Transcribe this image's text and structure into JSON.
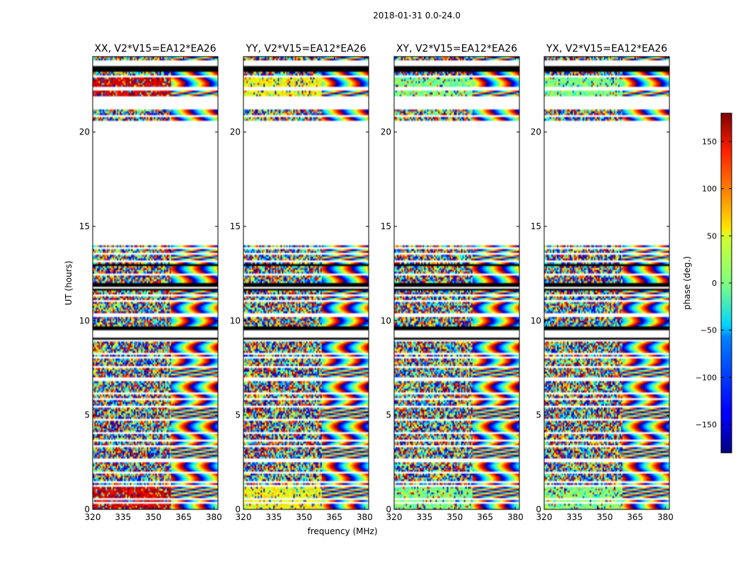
{
  "figure": {
    "suptitle": "2018-01-31 0.0-24.0",
    "xlabel": "frequency (MHz)",
    "ylabel": "UT (hours)",
    "colorbar_label": "phase (deg.)"
  },
  "chart_data": {
    "type": "heatmap",
    "panels": [
      {
        "title": "XX, V2*V15=EA12*EA26",
        "polarization": "XX"
      },
      {
        "title": "YY, V2*V15=EA12*EA26",
        "polarization": "YY"
      },
      {
        "title": "XY, V2*V15=EA12*EA26",
        "polarization": "XY"
      },
      {
        "title": "YX, V2*V15=EA12*EA26",
        "polarization": "YX"
      }
    ],
    "x": {
      "label": "frequency (MHz)",
      "range": [
        320,
        382
      ],
      "ticks": [
        320,
        335,
        350,
        365,
        380
      ]
    },
    "y": {
      "label": "UT (hours)",
      "range": [
        0,
        24
      ],
      "ticks": [
        0,
        5,
        10,
        15,
        20
      ]
    },
    "colorbar": {
      "label": "phase (deg.)",
      "range": [
        -180,
        180
      ],
      "ticks": [
        -150,
        -100,
        -50,
        0,
        50,
        100,
        150
      ],
      "colormap": "jet"
    },
    "data_gaps_hours": [
      [
        14.0,
        20.6
      ],
      [
        21.3,
        21.9
      ],
      [
        23.55,
        23.8
      ],
      [
        9.25,
        9.5
      ]
    ],
    "notes_visible": "phase noise with fringe patterns; white = flagged, black = blank"
  }
}
